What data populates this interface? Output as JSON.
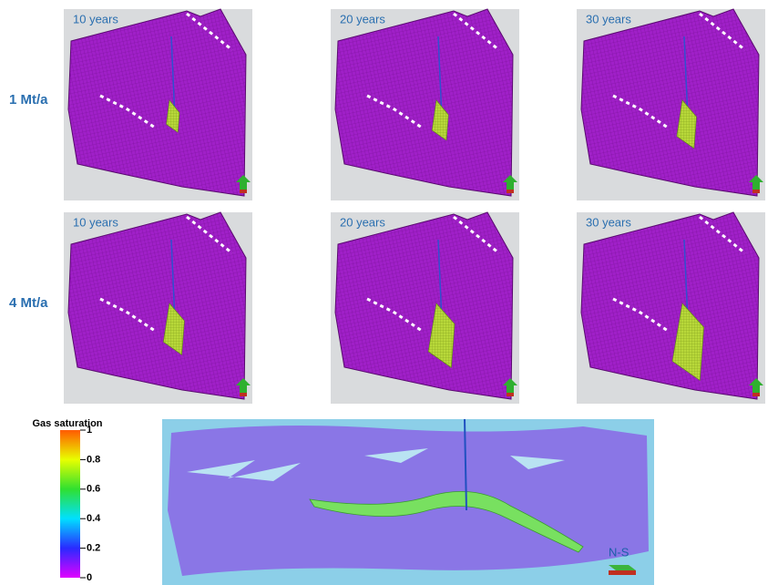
{
  "rows": [
    {
      "label": "1 Mt/a",
      "panels": [
        "10 years",
        "20 years",
        "30 years"
      ]
    },
    {
      "label": "4 Mt/a",
      "panels": [
        "10 years",
        "20 years",
        "30 years"
      ]
    }
  ],
  "colorbar": {
    "title": "Gas saturation",
    "ticks": [
      1,
      0.8,
      0.6,
      0.4,
      0.2,
      0
    ]
  },
  "cross_section": {
    "label": "N-S"
  }
}
